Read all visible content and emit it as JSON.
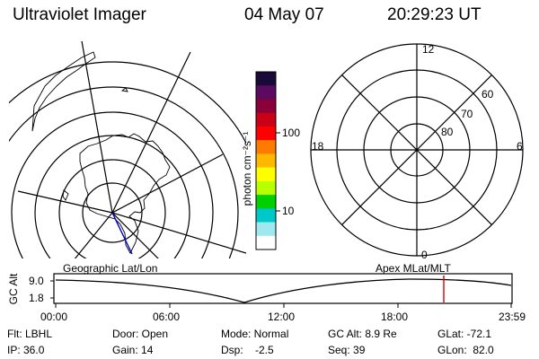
{
  "header": {
    "instrument": "Ultraviolet Imager",
    "date": "04 May 07",
    "time": "20:29:23 UT"
  },
  "colorbar": {
    "label": "photon cm⁻²s⁻¹",
    "ticks": [
      "100",
      "10"
    ],
    "colors": [
      "#1a0a3a",
      "#5b0a5f",
      "#8a0038",
      "#c80018",
      "#ff0000",
      "#ff7a00",
      "#ffb800",
      "#ffff00",
      "#b8ff00",
      "#00d000",
      "#00c8c8",
      "#9ee8f0",
      "#ffffff"
    ]
  },
  "mlt_dial": {
    "hour_labels": {
      "top": "12",
      "left": "18",
      "right": "6",
      "bottom": "0"
    },
    "lat_labels": [
      "60",
      "70",
      "80"
    ]
  },
  "geo_map": {
    "label": "Geographic Lat/Lon"
  },
  "altitude_plot": {
    "axis_title": "GC Alt",
    "y_ticks": [
      "9.0",
      "1.8"
    ],
    "x_ticks": [
      "00:00",
      "06:00",
      "12:00",
      "18:00",
      "23:59"
    ],
    "right_label": "Apex MLat/MLT",
    "marker_color": "#dd0000",
    "current_time_label": "20:29"
  },
  "status": {
    "row1": {
      "flt": "Flt: LBHL",
      "door": "Door: Open",
      "mode": "Mode: Normal",
      "gc_alt": "GC Alt: 8.9 Re",
      "glat": "GLat: -72.1"
    },
    "row2": {
      "ip": "IP: 36.0",
      "gain": "Gain: 14",
      "dsp": "Dsp:    -2.5",
      "seq": "Seq: 39",
      "glon": "GLon:  82.0"
    }
  }
}
